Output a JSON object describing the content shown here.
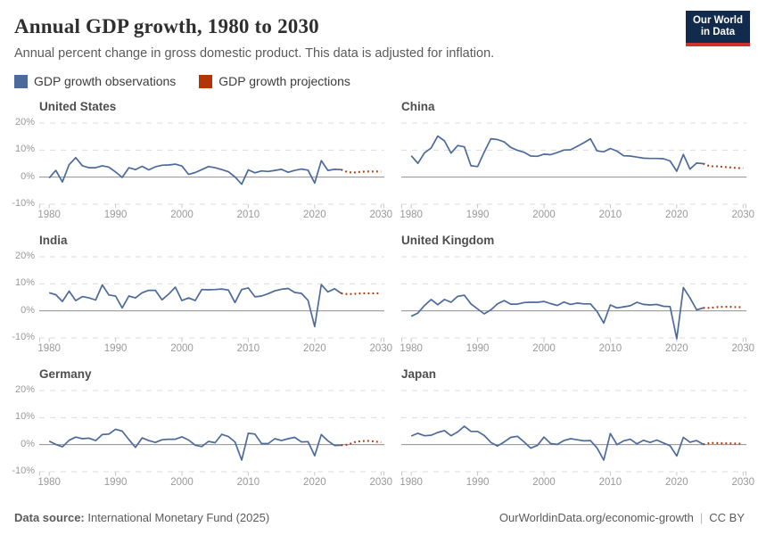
{
  "header": {
    "title": "Annual GDP growth, 1980 to 2030",
    "subtitle": "Annual percent change in gross domestic product. This data is adjusted for inflation.",
    "logo": {
      "line1": "Our World",
      "line2": "in Data"
    }
  },
  "legend": {
    "observations_label": "GDP growth observations",
    "projections_label": "GDP growth projections"
  },
  "colors": {
    "observations": "#4C6A9C",
    "projections": "#B13507",
    "grid": "#dcdcdc",
    "zero_line": "#8f8f8f",
    "tick": "#c8c8c8",
    "axis_label": "#999999",
    "logo_navy": "#122a4c",
    "logo_red": "#cf3130"
  },
  "axes": {
    "y_ticks": [
      {
        "label": "20%",
        "value": 20
      },
      {
        "label": "10%",
        "value": 10
      },
      {
        "label": "0%",
        "value": 0
      },
      {
        "label": "-10%",
        "value": -10
      }
    ],
    "x_ticks": [
      1980,
      1990,
      2000,
      2010,
      2020,
      2030
    ],
    "x_domain": [
      1978.5,
      2030.5
    ],
    "y_domain": [
      -10,
      20
    ],
    "grid": "dashed-horizontal"
  },
  "chart_data": [
    {
      "type": "line",
      "title": "United States",
      "xlabel": "",
      "ylabel": "",
      "ylim": [
        -10,
        20
      ],
      "series": [
        {
          "name": "GDP growth observations",
          "style": "solid",
          "x_start": 1980,
          "values": [
            -0.3,
            2.5,
            -1.8,
            4.6,
            7.2,
            4.2,
            3.5,
            3.5,
            4.2,
            3.7,
            1.9,
            -0.1,
            3.5,
            2.8,
            4.0,
            2.7,
            3.8,
            4.4,
            4.5,
            4.8,
            4.1,
            1.0,
            1.7,
            2.8,
            3.9,
            3.5,
            2.8,
            2.0,
            0.1,
            -2.6,
            2.7,
            1.6,
            2.3,
            2.1,
            2.5,
            2.9,
            1.8,
            2.5,
            3.0,
            2.6,
            -2.2,
            6.1,
            2.5,
            2.9,
            2.8
          ]
        },
        {
          "name": "GDP growth projections",
          "style": "dotted",
          "x_start": 2024,
          "values": [
            2.8,
            1.8,
            1.7,
            2.0,
            2.1,
            2.1,
            2.1
          ]
        }
      ]
    },
    {
      "type": "line",
      "title": "China",
      "xlabel": "",
      "ylabel": "",
      "ylim": [
        -10,
        20
      ],
      "series": [
        {
          "name": "GDP growth observations",
          "style": "solid",
          "x_start": 1980,
          "values": [
            7.9,
            5.1,
            9.0,
            10.8,
            15.2,
            13.4,
            8.9,
            11.7,
            11.2,
            4.2,
            3.9,
            9.3,
            14.2,
            13.9,
            13.0,
            11.0,
            9.9,
            9.2,
            7.8,
            7.7,
            8.5,
            8.3,
            9.1,
            10.0,
            10.1,
            11.4,
            12.7,
            14.2,
            9.7,
            9.4,
            10.6,
            9.6,
            7.9,
            7.8,
            7.4,
            7.0,
            6.9,
            6.9,
            6.8,
            6.0,
            2.2,
            8.4,
            3.0,
            5.2,
            5.0
          ]
        },
        {
          "name": "GDP growth projections",
          "style": "dotted",
          "x_start": 2024,
          "values": [
            5.0,
            4.0,
            4.0,
            3.8,
            3.6,
            3.4,
            3.3
          ]
        }
      ]
    },
    {
      "type": "line",
      "title": "India",
      "xlabel": "",
      "ylabel": "",
      "ylim": [
        -10,
        20
      ],
      "series": [
        {
          "name": "GDP growth observations",
          "style": "solid",
          "x_start": 1980,
          "values": [
            6.7,
            6.0,
            3.5,
            7.3,
            3.8,
            5.3,
            4.8,
            4.0,
            9.6,
            5.9,
            5.5,
            1.1,
            5.5,
            4.8,
            6.7,
            7.6,
            7.6,
            4.1,
            6.2,
            8.8,
            3.8,
            4.8,
            3.8,
            7.9,
            7.8,
            7.9,
            8.1,
            7.7,
            3.1,
            7.9,
            8.5,
            5.2,
            5.5,
            6.4,
            7.4,
            8.0,
            8.3,
            6.8,
            6.5,
            3.9,
            -5.8,
            9.7,
            7.0,
            8.2,
            6.5
          ]
        },
        {
          "name": "GDP growth projections",
          "style": "dotted",
          "x_start": 2024,
          "values": [
            6.5,
            6.2,
            6.3,
            6.5,
            6.5,
            6.5,
            6.5
          ]
        }
      ]
    },
    {
      "type": "line",
      "title": "United Kingdom",
      "xlabel": "",
      "ylabel": "",
      "ylim": [
        -10,
        20
      ],
      "series": [
        {
          "name": "GDP growth observations",
          "style": "solid",
          "x_start": 1980,
          "values": [
            -2.0,
            -0.8,
            2.0,
            4.2,
            2.3,
            4.2,
            3.2,
            5.4,
            5.8,
            2.6,
            0.7,
            -1.1,
            0.4,
            2.6,
            3.8,
            2.5,
            2.5,
            3.1,
            3.2,
            3.2,
            3.5,
            2.7,
            2.0,
            3.3,
            2.4,
            2.9,
            2.6,
            2.6,
            -0.2,
            -4.5,
            2.2,
            1.1,
            1.5,
            1.9,
            3.2,
            2.4,
            2.2,
            2.4,
            1.7,
            1.6,
            -10.3,
            8.6,
            4.8,
            0.4,
            1.1
          ]
        },
        {
          "name": "GDP growth projections",
          "style": "dotted",
          "x_start": 2024,
          "values": [
            1.1,
            1.1,
            1.4,
            1.5,
            1.5,
            1.4,
            1.4
          ]
        }
      ]
    },
    {
      "type": "line",
      "title": "Germany",
      "xlabel": "",
      "ylabel": "",
      "ylim": [
        -10,
        20
      ],
      "series": [
        {
          "name": "GDP growth observations",
          "style": "solid",
          "x_start": 1980,
          "values": [
            1.3,
            0.1,
            -0.8,
            1.6,
            2.8,
            2.2,
            2.4,
            1.5,
            3.7,
            3.9,
            5.7,
            5.0,
            1.9,
            -1.0,
            2.5,
            1.5,
            0.8,
            1.8,
            2.0,
            2.0,
            2.9,
            1.7,
            -0.2,
            -0.7,
            1.2,
            0.7,
            3.8,
            3.0,
            1.0,
            -5.7,
            4.2,
            3.9,
            0.4,
            0.4,
            2.2,
            1.5,
            2.2,
            2.7,
            1.0,
            1.1,
            -4.1,
            3.7,
            1.4,
            -0.3,
            -0.2
          ]
        },
        {
          "name": "GDP growth projections",
          "style": "dotted",
          "x_start": 2024,
          "values": [
            -0.2,
            0.0,
            0.9,
            1.3,
            1.4,
            1.2,
            0.8
          ]
        }
      ]
    },
    {
      "type": "line",
      "title": "Japan",
      "xlabel": "",
      "ylabel": "",
      "ylim": [
        -10,
        20
      ],
      "series": [
        {
          "name": "GDP growth observations",
          "style": "solid",
          "x_start": 1980,
          "values": [
            3.2,
            4.2,
            3.3,
            3.5,
            4.5,
            5.2,
            3.3,
            4.7,
            6.8,
            4.9,
            4.9,
            3.4,
            0.8,
            -0.5,
            1.0,
            2.7,
            3.1,
            1.0,
            -1.3,
            -0.3,
            2.8,
            0.4,
            0.1,
            1.5,
            2.2,
            1.8,
            1.4,
            1.5,
            -1.2,
            -5.7,
            4.1,
            0.0,
            1.4,
            2.0,
            0.3,
            1.6,
            0.8,
            1.7,
            0.6,
            -0.4,
            -4.2,
            2.7,
            0.9,
            1.5,
            0.1
          ]
        },
        {
          "name": "GDP growth projections",
          "style": "dotted",
          "x_start": 2024,
          "values": [
            0.1,
            0.6,
            0.6,
            0.5,
            0.5,
            0.4,
            0.4
          ]
        }
      ]
    }
  ],
  "footer": {
    "source_label": "Data source:",
    "source_value": " International Monetary Fund (2025)",
    "link": "OurWorldinData.org/economic-growth",
    "separator": "|",
    "license": "CC BY"
  }
}
